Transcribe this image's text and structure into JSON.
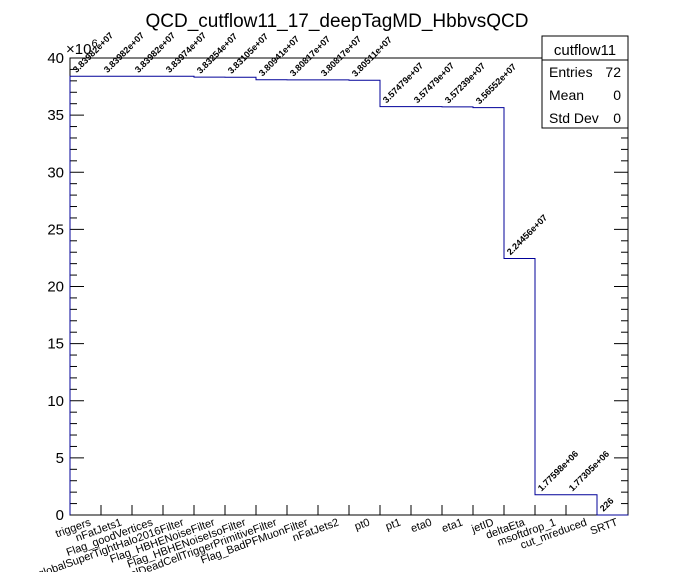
{
  "chart_data": {
    "type": "bar",
    "title": "QCD_cutflow11_17_deepTagMD_HbbvsQCD",
    "y_multiplier": "×10",
    "y_multiplier_exp": "6",
    "ylim": [
      0,
      40
    ],
    "yticks": [
      0,
      5,
      10,
      15,
      20,
      25,
      30,
      35,
      40
    ],
    "ytick_labels": [
      "0",
      "5",
      "10",
      "15",
      "20",
      "25",
      "30",
      "35",
      "40"
    ],
    "categories": [
      "triggers",
      "nFatJets1",
      "Flag_goodVertices",
      "Flag_globalSuperTightHalo2016Filter",
      "Flag_HBHENoiseFilter",
      "Flag_HBHENoiseIsoFilter",
      "Flag_EcalDeadCellTriggerPrimitiveFilter",
      "Flag_BadPFMuonFilter",
      "nFatJets2",
      "pt0",
      "pt1",
      "eta0",
      "eta1",
      "jetID",
      "deltaEta",
      "msoftdrop_1",
      "cut_mreduced",
      "SRTT"
    ],
    "values": [
      38398200,
      38398200,
      38398200,
      38397400,
      38325400,
      38310500,
      38094100,
      38081700,
      38081700,
      38051100,
      35747900,
      35747900,
      35723900,
      35655200,
      22445600,
      1775980,
      1773050,
      226
    ],
    "value_labels": [
      "3.83982e+07",
      "3.83982e+07",
      "3.83982e+07",
      "3.83974e+07",
      "3.83254e+07",
      "3.83105e+07",
      "3.80941e+07",
      "3.80817e+07",
      "3.80817e+07",
      "3.80511e+07",
      "3.57479e+07",
      "3.57479e+07",
      "3.57239e+07",
      "3.56552e+07",
      "2.24456e+07",
      "1.77598e+06",
      "1.77305e+06",
      "226"
    ],
    "line_color": "#000099"
  },
  "stats": {
    "name": "cutflow11",
    "rows": [
      {
        "label": "Entries",
        "value": "72"
      },
      {
        "label": "Mean",
        "value": "0"
      },
      {
        "label": "Std Dev",
        "value": "0"
      }
    ]
  }
}
